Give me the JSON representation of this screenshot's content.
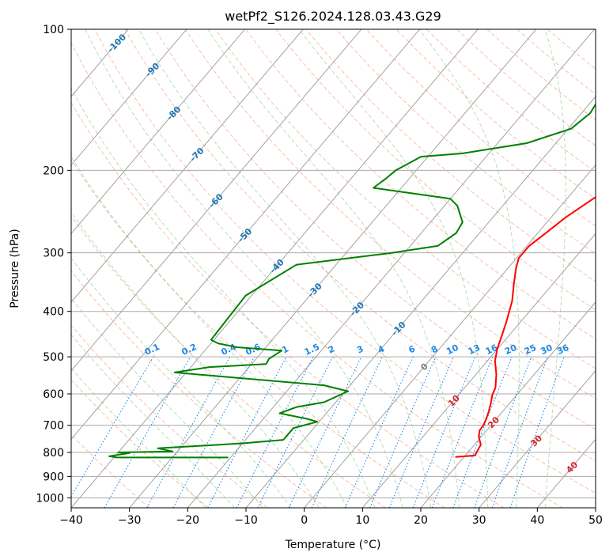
{
  "chart_data": {
    "type": "line",
    "title": "wetPf2_S126.2024.128.03.43.G29",
    "xlabel": "Temperature (°C)",
    "ylabel": "Pressure (hPa)",
    "xlim": [
      -40,
      50
    ],
    "ylim": [
      1050,
      100
    ],
    "y_scale": "log",
    "grid": true,
    "x_ticks": [
      -40,
      -30,
      -20,
      -10,
      0,
      10,
      20,
      30,
      40,
      50
    ],
    "y_ticks": [
      100,
      200,
      300,
      400,
      500,
      600,
      700,
      800,
      900,
      1000
    ],
    "series": [
      {
        "name": "",
        "color": "#ff0000",
        "points": [
          [
            18.5,
            818
          ],
          [
            21.7,
            812
          ],
          [
            21.5,
            800
          ],
          [
            21.1,
            770
          ],
          [
            19.6,
            741
          ],
          [
            18.8,
            718
          ],
          [
            18.7,
            700
          ],
          [
            18.3,
            680
          ],
          [
            17.6,
            654
          ],
          [
            16.8,
            629
          ],
          [
            15.8,
            603
          ],
          [
            15.3,
            582
          ],
          [
            13.5,
            545
          ],
          [
            11.3,
            510
          ],
          [
            9.9,
            480
          ],
          [
            8.7,
            448
          ],
          [
            7.6,
            422
          ],
          [
            5.5,
            380
          ],
          [
            3.2,
            348
          ],
          [
            1.5,
            325
          ],
          [
            0.4,
            308
          ],
          [
            0.4,
            290
          ],
          [
            1.5,
            270
          ],
          [
            2.5,
            252
          ],
          [
            4.5,
            230
          ],
          [
            7.3,
            205
          ],
          [
            8.5,
            190
          ],
          [
            9.1,
            175
          ],
          [
            9.6,
            162
          ],
          [
            10.0,
            150
          ],
          [
            11.1,
            137
          ],
          [
            11.5,
            130
          ],
          [
            12.5,
            121
          ],
          [
            12.9,
            112
          ],
          [
            14.2,
            107
          ],
          [
            15.7,
            100
          ]
        ]
      },
      {
        "name": "",
        "color": "#008000",
        "points": [
          [
            -20.4,
            820
          ],
          [
            -39.5,
            820
          ],
          [
            -41.0,
            815
          ],
          [
            -38.0,
            802
          ],
          [
            -40.0,
            800
          ],
          [
            -30.8,
            796
          ],
          [
            -33.8,
            784
          ],
          [
            -20.0,
            765
          ],
          [
            -13.5,
            752
          ],
          [
            -13.5,
            710
          ],
          [
            -10.3,
            688
          ],
          [
            -12.5,
            678
          ],
          [
            -18.0,
            660
          ],
          [
            -16.0,
            640
          ],
          [
            -12.0,
            625
          ],
          [
            -9.5,
            592
          ],
          [
            -14.5,
            575
          ],
          [
            -42.0,
            540
          ],
          [
            -36.8,
            526
          ],
          [
            -27.5,
            518
          ],
          [
            -27.8,
            505
          ],
          [
            -26.8,
            485
          ],
          [
            -35.0,
            477
          ],
          [
            -38.8,
            468
          ],
          [
            -40.5,
            460
          ],
          [
            -41.0,
            370
          ],
          [
            -36.8,
            318
          ],
          [
            -22.2,
            300
          ],
          [
            -15.3,
            290
          ],
          [
            -14.0,
            272
          ],
          [
            -14.5,
            258
          ],
          [
            -17.8,
            238
          ],
          [
            -20.0,
            230
          ],
          [
            -28.5,
            223
          ],
          [
            -34.8,
            218
          ],
          [
            -34.0,
            208
          ],
          [
            -33.5,
            200
          ],
          [
            -31.2,
            187
          ],
          [
            -24.5,
            184
          ],
          [
            -15.0,
            175
          ],
          [
            -9.5,
            163
          ],
          [
            -8.5,
            151
          ],
          [
            -9.0,
            142
          ],
          [
            -9.2,
            137
          ],
          [
            -6.0,
            128
          ],
          [
            -2.0,
            115
          ],
          [
            0.5,
            106
          ],
          [
            2.5,
            100
          ]
        ]
      }
    ],
    "mixing_ratio_labels": [
      "0.1",
      "0.2",
      "0.4",
      "0.6",
      "1",
      "1.5",
      "2",
      "3",
      "4",
      "6",
      "8",
      "10",
      "13",
      "16",
      "20",
      "25",
      "30",
      "36"
    ],
    "isotherm_labels": [
      "-100",
      "-90",
      "-80",
      "-70",
      "-60",
      "-50",
      "-40",
      "-30",
      "-20",
      "-10"
    ],
    "moist_adiabat_labels": [
      "0",
      "10",
      "20",
      "30",
      "40"
    ]
  }
}
